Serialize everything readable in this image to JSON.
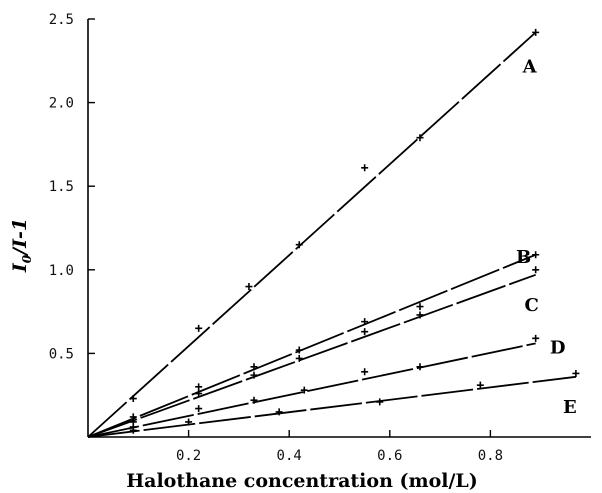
{
  "chart_data": {
    "type": "scatter",
    "title": "",
    "xlabel": "Halothane concentration (mol/L)",
    "ylabel": "I0/I-1",
    "ylabel_parts": {
      "i": "I",
      "sub": "0",
      "rest": "/I-1"
    },
    "xlim": [
      0,
      1.0
    ],
    "ylim": [
      0,
      2.5
    ],
    "x_ticks": [
      "0.2",
      "0.4",
      "0.6",
      "0.8"
    ],
    "y_ticks": [
      "0.5",
      "1.0",
      "1.5",
      "2.0",
      "2.5"
    ],
    "grid": false,
    "legend": "none",
    "line_fit": true,
    "series": [
      {
        "name": "A",
        "x": [
          0.09,
          0.22,
          0.32,
          0.42,
          0.55,
          0.66,
          0.89
        ],
        "y": [
          0.23,
          0.65,
          0.9,
          1.15,
          1.61,
          1.79,
          2.42
        ],
        "fit_end": [
          0.89,
          2.42
        ]
      },
      {
        "name": "B",
        "x": [
          0.09,
          0.22,
          0.33,
          0.42,
          0.55,
          0.66,
          0.89
        ],
        "y": [
          0.12,
          0.3,
          0.42,
          0.52,
          0.69,
          0.78,
          1.09
        ],
        "fit_end": [
          0.89,
          1.09
        ]
      },
      {
        "name": "C",
        "x": [
          0.09,
          0.22,
          0.33,
          0.42,
          0.55,
          0.66,
          0.89
        ],
        "y": [
          0.09,
          0.26,
          0.37,
          0.47,
          0.63,
          0.73,
          1.0
        ],
        "fit_end": [
          0.89,
          0.97
        ]
      },
      {
        "name": "D",
        "x": [
          0.09,
          0.22,
          0.33,
          0.43,
          0.55,
          0.66,
          0.89
        ],
        "y": [
          0.06,
          0.17,
          0.22,
          0.28,
          0.39,
          0.42,
          0.59
        ],
        "fit_end": [
          0.89,
          0.56
        ]
      },
      {
        "name": "E",
        "x": [
          0.09,
          0.2,
          0.38,
          0.58,
          0.78,
          0.97
        ],
        "y": [
          0.04,
          0.09,
          0.15,
          0.21,
          0.31,
          0.38
        ],
        "fit_end": [
          0.97,
          0.36
        ]
      }
    ]
  }
}
